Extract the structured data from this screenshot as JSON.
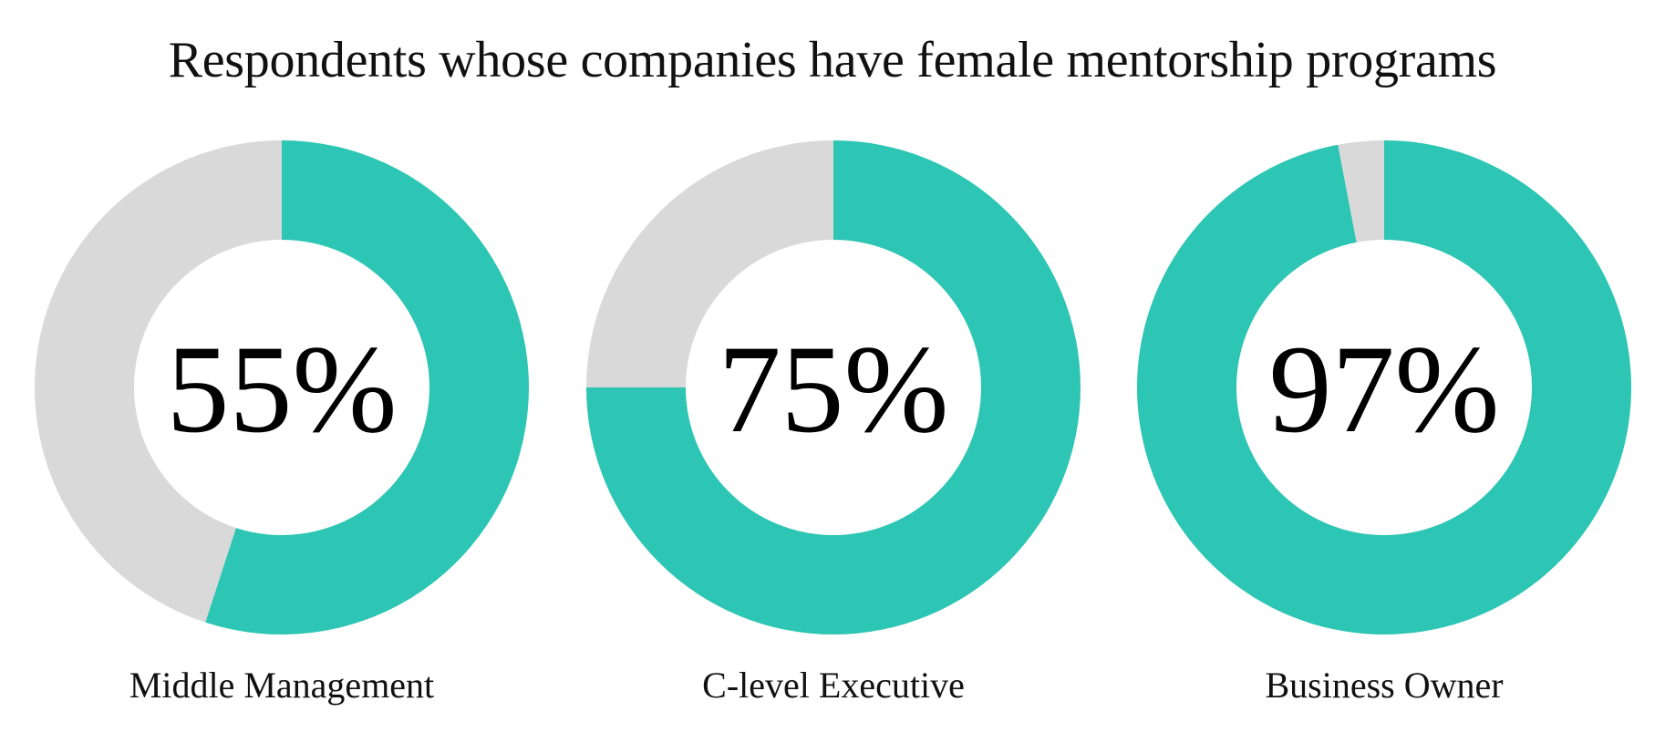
{
  "title": "Respondents whose companies have female mentorship programs",
  "colors": {
    "filled": "#2DC5B3",
    "remainder": "#D9D9D9",
    "background": "#FFFFFF"
  },
  "chart_data": [
    {
      "type": "pie",
      "category": "Middle Management",
      "value": 55,
      "display": "55%"
    },
    {
      "type": "pie",
      "category": "C-level Executive",
      "value": 75,
      "display": "75%"
    },
    {
      "type": "pie",
      "category": "Business Owner",
      "value": 97,
      "display": "97%"
    }
  ]
}
